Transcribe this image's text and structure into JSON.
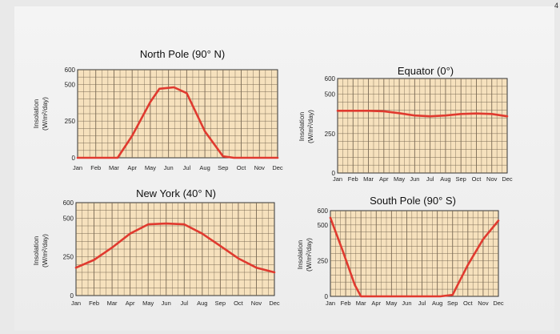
{
  "page_marker": "4",
  "chart_data": [
    {
      "id": "north",
      "type": "line",
      "title": "North Pole (90° N)",
      "ylabel": [
        "Insolation",
        "(W/m²/day)"
      ],
      "categories": [
        "Jan",
        "Feb",
        "Mar",
        "Apr",
        "May",
        "Jun",
        "Jul",
        "Aug",
        "Sep",
        "Oct",
        "Nov",
        "Dec"
      ],
      "yticks": [
        0,
        250,
        500,
        600
      ],
      "ylim": [
        0,
        600
      ],
      "grid": true,
      "color": "#e03a2f",
      "bg": "#f6e1bd",
      "x": [
        0,
        2.2,
        3.0,
        4.0,
        4.5,
        5.3,
        6.0,
        7.0,
        8.0,
        8.6,
        11
      ],
      "values": [
        0,
        0,
        150,
        380,
        470,
        480,
        440,
        180,
        10,
        0,
        0
      ]
    },
    {
      "id": "equator",
      "type": "line",
      "title": "Equator (0°)",
      "ylabel": [
        "Insolation",
        "(W/m²/day)"
      ],
      "categories": [
        "Jan",
        "Feb",
        "Mar",
        "Apr",
        "May",
        "Jun",
        "Jul",
        "Aug",
        "Sep",
        "Oct",
        "Nov",
        "Dec"
      ],
      "yticks": [
        0,
        250,
        500,
        600
      ],
      "ylim": [
        0,
        600
      ],
      "grid": true,
      "color": "#e03a2f",
      "bg": "#f6e1bd",
      "x": [
        0,
        2,
        3,
        4,
        5,
        6,
        7,
        8,
        9,
        10,
        11
      ],
      "values": [
        395,
        395,
        392,
        380,
        365,
        360,
        365,
        375,
        378,
        375,
        360
      ]
    },
    {
      "id": "newyork",
      "type": "line",
      "title": "New York (40° N)",
      "ylabel": [
        "Insolation",
        "(W/m²/day)"
      ],
      "categories": [
        "Jan",
        "Feb",
        "Mar",
        "Apr",
        "May",
        "Jun",
        "Jul",
        "Aug",
        "Sep",
        "Oct",
        "Nov",
        "Dec"
      ],
      "yticks": [
        0,
        250,
        500,
        600
      ],
      "ylim": [
        0,
        600
      ],
      "grid": true,
      "color": "#e03a2f",
      "bg": "#f6e1bd",
      "x": [
        0,
        1,
        2,
        3,
        4,
        5,
        6,
        7,
        8,
        9,
        10,
        11
      ],
      "values": [
        180,
        230,
        310,
        400,
        460,
        465,
        460,
        400,
        320,
        240,
        180,
        150
      ]
    },
    {
      "id": "southpole",
      "type": "line",
      "title": "South Pole (90° S)",
      "ylabel": [
        "Insolation",
        "(W/m²/day)"
      ],
      "categories": [
        "Jan",
        "Feb",
        "Mar",
        "Apr",
        "May",
        "Jun",
        "Jul",
        "Aug",
        "Sep",
        "Oct",
        "Nov",
        "Dec"
      ],
      "yticks": [
        0,
        250,
        500,
        600
      ],
      "ylim": [
        0,
        600
      ],
      "grid": true,
      "color": "#e03a2f",
      "bg": "#f6e1bd",
      "x": [
        0,
        0.8,
        1.6,
        2.0,
        7.2,
        8.0,
        9.0,
        10.0,
        11.0
      ],
      "values": [
        550,
        320,
        80,
        0,
        0,
        10,
        220,
        400,
        530
      ]
    }
  ]
}
